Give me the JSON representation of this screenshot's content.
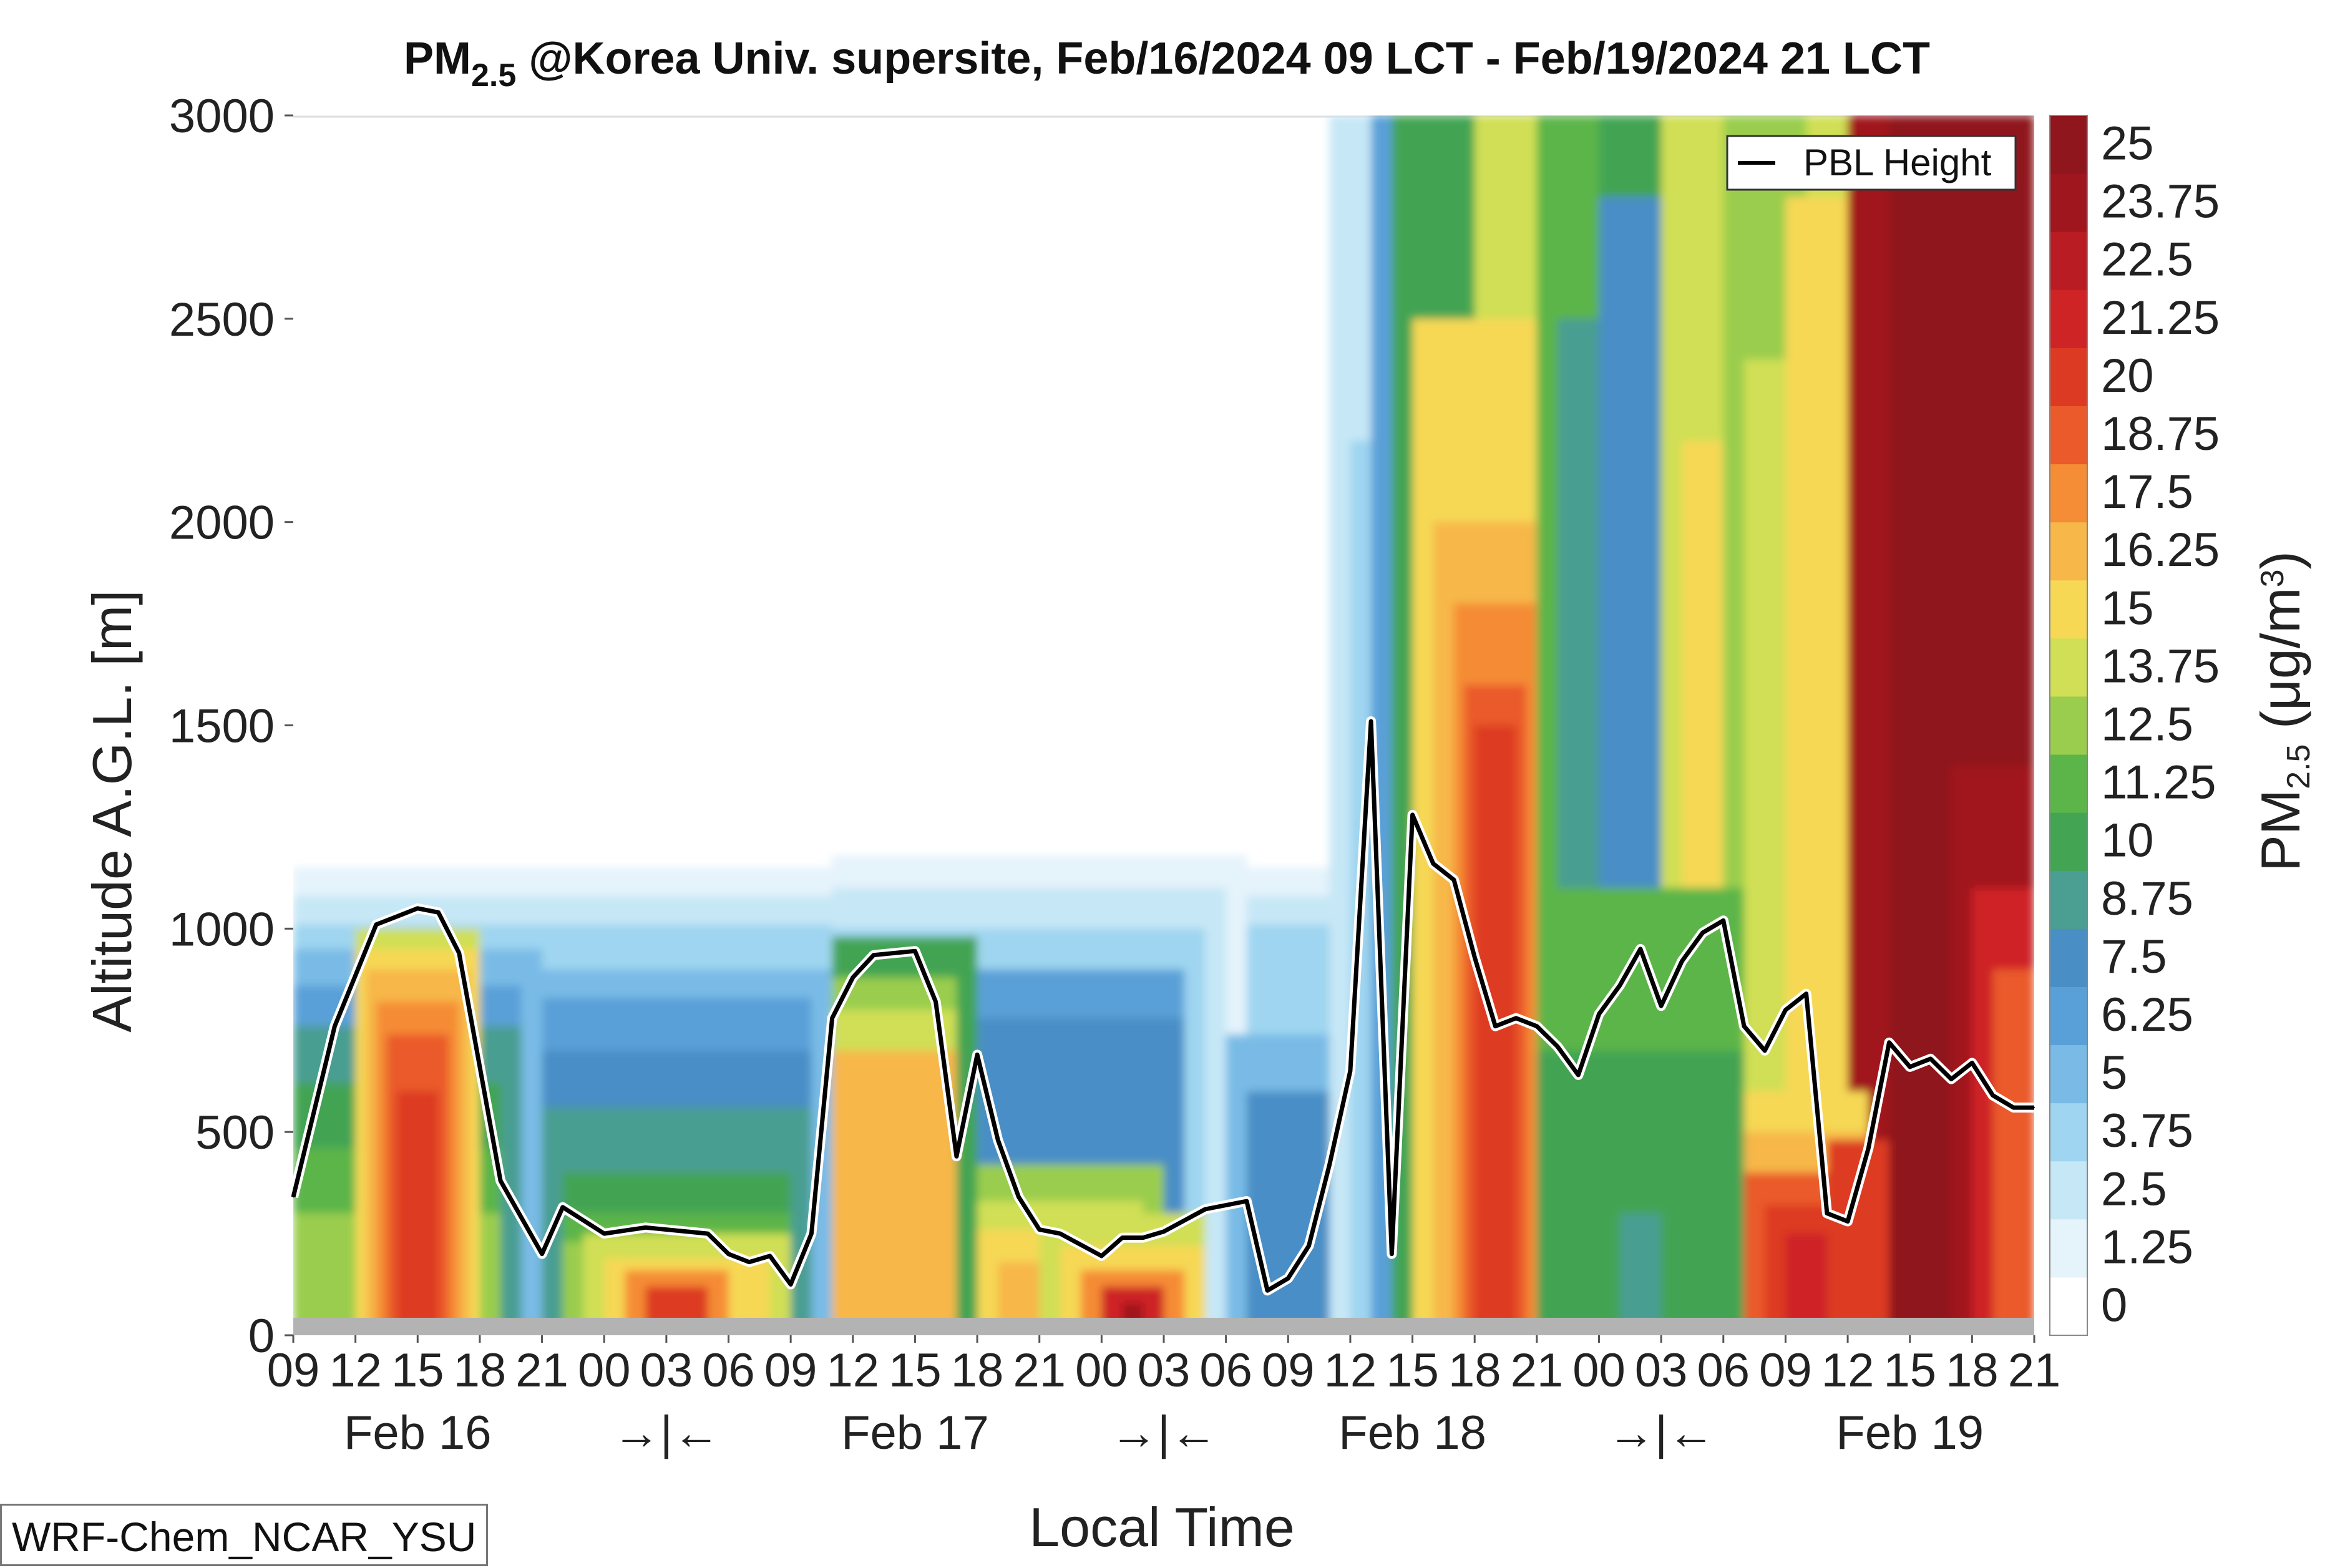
{
  "chart_data": {
    "type": "heatmap",
    "title_main": "PM",
    "title_sub": "2.5",
    "title_rest": " @Korea Univ. supersite, Feb/16/2024 09 LCT - Feb/19/2024 21 LCT",
    "xlabel": "Local Time",
    "ylabel": "Altitude A.G.L. [m]",
    "colorbar_label_main": "PM",
    "colorbar_label_sub": "2.5",
    "colorbar_label_unit": " (μg/m",
    "colorbar_label_sup": "3",
    "colorbar_label_close": ")",
    "ylim": [
      0,
      3000
    ],
    "yticks": [
      "0",
      "500",
      "1000",
      "1500",
      "2000",
      "2500",
      "3000"
    ],
    "xlim_hours": [
      0,
      84
    ],
    "xtick_labels": [
      "09",
      "12",
      "15",
      "18",
      "21",
      "00",
      "03",
      "06",
      "09",
      "12",
      "15",
      "18",
      "21",
      "00",
      "03",
      "06",
      "09",
      "12",
      "15",
      "18",
      "21",
      "00",
      "03",
      "06",
      "09",
      "12",
      "15",
      "18",
      "21"
    ],
    "date_labels": [
      "Feb 16",
      "→|←",
      "Feb 17",
      "→|←",
      "Feb 18",
      "→|←",
      "Feb 19"
    ],
    "color_levels": [
      "0",
      "1.25",
      "2.5",
      "3.75",
      "5",
      "6.25",
      "7.5",
      "8.75",
      "10",
      "11.25",
      "12.5",
      "13.75",
      "15",
      "16.25",
      "17.5",
      "18.75",
      "20",
      "21.25",
      "22.5",
      "23.75",
      "25"
    ],
    "colors": [
      "#ffffff",
      "#e5f3fb",
      "#c6e7f6",
      "#9fd5f0",
      "#79bbe6",
      "#5aa0d8",
      "#4a8ec6",
      "#4a9e92",
      "#43a453",
      "#5cb548",
      "#9acd4e",
      "#d0df55",
      "#f6d855",
      "#f7b749",
      "#f58c36",
      "#ea5a2a",
      "#dd3a23",
      "#ce2426",
      "#b91c22",
      "#a0161e",
      "#8f161d"
    ],
    "model_label": "WRF-Chem_NCAR_YSU",
    "legend": [
      {
        "name": "PBL Height",
        "color": "#000000"
      }
    ],
    "pbl_height": [
      {
        "x": 0,
        "y": 340
      },
      {
        "x": 2,
        "y": 760
      },
      {
        "x": 4,
        "y": 1010
      },
      {
        "x": 6,
        "y": 1050
      },
      {
        "x": 7,
        "y": 1040
      },
      {
        "x": 8,
        "y": 940
      },
      {
        "x": 10,
        "y": 380
      },
      {
        "x": 12,
        "y": 200
      },
      {
        "x": 13,
        "y": 315
      },
      {
        "x": 15,
        "y": 250
      },
      {
        "x": 17,
        "y": 265
      },
      {
        "x": 20,
        "y": 250
      },
      {
        "x": 21,
        "y": 200
      },
      {
        "x": 22,
        "y": 180
      },
      {
        "x": 23,
        "y": 195
      },
      {
        "x": 24,
        "y": 125
      },
      {
        "x": 25,
        "y": 250
      },
      {
        "x": 26,
        "y": 780
      },
      {
        "x": 27,
        "y": 880
      },
      {
        "x": 28,
        "y": 935
      },
      {
        "x": 30,
        "y": 945
      },
      {
        "x": 31,
        "y": 820
      },
      {
        "x": 32,
        "y": 440
      },
      {
        "x": 33,
        "y": 690
      },
      {
        "x": 34,
        "y": 480
      },
      {
        "x": 35,
        "y": 340
      },
      {
        "x": 36,
        "y": 260
      },
      {
        "x": 37,
        "y": 250
      },
      {
        "x": 39,
        "y": 195
      },
      {
        "x": 40,
        "y": 240
      },
      {
        "x": 41,
        "y": 240
      },
      {
        "x": 42,
        "y": 255
      },
      {
        "x": 44,
        "y": 310
      },
      {
        "x": 46,
        "y": 330
      },
      {
        "x": 47,
        "y": 110
      },
      {
        "x": 48,
        "y": 140
      },
      {
        "x": 49,
        "y": 220
      },
      {
        "x": 50,
        "y": 420
      },
      {
        "x": 51,
        "y": 650
      },
      {
        "x": 52,
        "y": 1510
      },
      {
        "x": 53,
        "y": 200
      },
      {
        "x": 54,
        "y": 1280
      },
      {
        "x": 55,
        "y": 1160
      },
      {
        "x": 56,
        "y": 1120
      },
      {
        "x": 57,
        "y": 930
      },
      {
        "x": 58,
        "y": 760
      },
      {
        "x": 59,
        "y": 780
      },
      {
        "x": 60,
        "y": 760
      },
      {
        "x": 61,
        "y": 710
      },
      {
        "x": 62,
        "y": 640
      },
      {
        "x": 63,
        "y": 790
      },
      {
        "x": 64,
        "y": 860
      },
      {
        "x": 65,
        "y": 950
      },
      {
        "x": 66,
        "y": 810
      },
      {
        "x": 67,
        "y": 920
      },
      {
        "x": 68,
        "y": 990
      },
      {
        "x": 69,
        "y": 1020
      },
      {
        "x": 70,
        "y": 760
      },
      {
        "x": 71,
        "y": 700
      },
      {
        "x": 72,
        "y": 800
      },
      {
        "x": 73,
        "y": 840
      },
      {
        "x": 74,
        "y": 300
      },
      {
        "x": 75,
        "y": 280
      },
      {
        "x": 76,
        "y": 460
      },
      {
        "x": 77,
        "y": 720
      },
      {
        "x": 78,
        "y": 660
      },
      {
        "x": 79,
        "y": 680
      },
      {
        "x": 80,
        "y": 630
      },
      {
        "x": 81,
        "y": 670
      },
      {
        "x": 82,
        "y": 590
      },
      {
        "x": 83,
        "y": 560
      },
      {
        "x": 84,
        "y": 560
      }
    ]
  }
}
